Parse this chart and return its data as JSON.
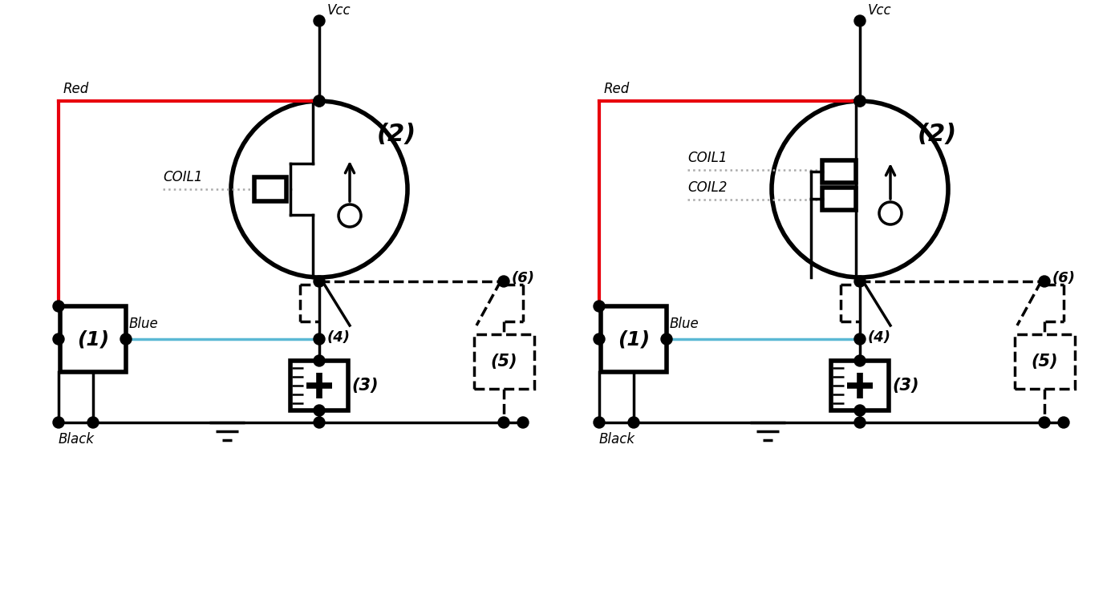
{
  "bg_color": "#ffffff",
  "line_color": "#000000",
  "red_color": "#e8000d",
  "blue_color": "#5bb8d4",
  "gray_color": "#aaaaaa",
  "lw": 2.5,
  "blw": 4.0,
  "fig_width": 13.95,
  "fig_height": 7.36,
  "text_font": "DejaVu Sans",
  "label_2": "(2)",
  "label_1": "(1)",
  "label_3": "(3)",
  "label_4": "(4)",
  "label_5": "(5)",
  "label_6": "(6)",
  "label_coil1": "COIL1",
  "label_coil2": "COIL2",
  "label_red": "Red",
  "label_blue": "Blue",
  "label_black": "Black",
  "label_vcc": "Vcc"
}
